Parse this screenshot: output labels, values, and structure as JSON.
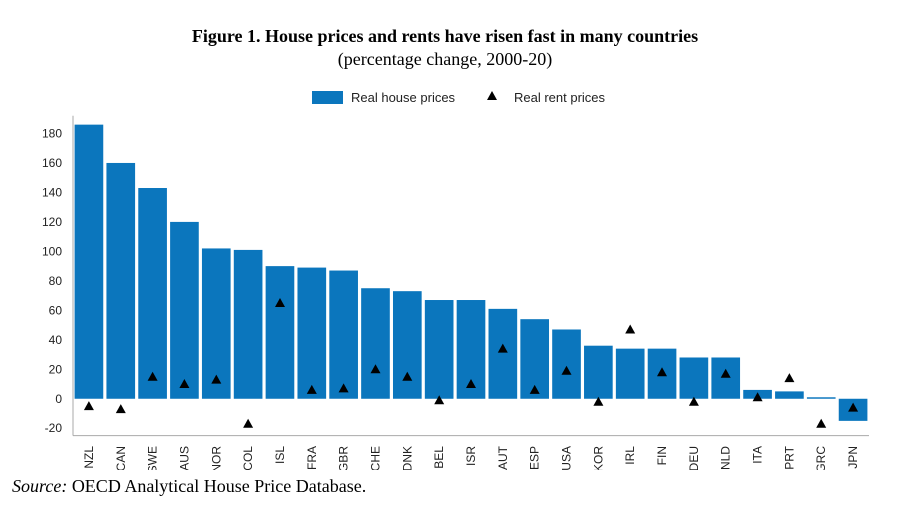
{
  "chart_data": {
    "type": "bar",
    "title": "Figure 1. House prices and rents have risen fast in many countries",
    "subtitle": "(percentage change, 2000-20)",
    "categories": [
      "NZL",
      "CAN",
      "SWE",
      "AUS",
      "NOR",
      "COL",
      "ISL",
      "FRA",
      "GBR",
      "CHE",
      "DNK",
      "BEL",
      "ISR",
      "AUT",
      "ESP",
      "USA",
      "KOR",
      "IRL",
      "FIN",
      "DEU",
      "NLD",
      "ITA",
      "PRT",
      "GRC",
      "JPN"
    ],
    "series": [
      {
        "name": "Real house prices",
        "mark": "bar",
        "color": "#0b76bd",
        "values": [
          186,
          160,
          143,
          120,
          102,
          101,
          90,
          89,
          87,
          75,
          73,
          67,
          67,
          61,
          54,
          47,
          36,
          34,
          34,
          28,
          28,
          6,
          5,
          1,
          -15
        ]
      },
      {
        "name": "Real rent prices",
        "mark": "triangle",
        "color": "#000000",
        "values": [
          -5,
          -7,
          15,
          10,
          13,
          -17,
          65,
          6,
          7,
          20,
          15,
          -1,
          10,
          34,
          6,
          19,
          -2,
          47,
          18,
          -2,
          17,
          1,
          14,
          -17,
          -6
        ]
      }
    ],
    "yticks": [
      -20,
      0,
      20,
      40,
      60,
      80,
      100,
      120,
      140,
      160,
      180
    ],
    "ylim": [
      -25,
      192
    ],
    "xlabel": "",
    "ylabel": "",
    "grid": false,
    "legend": "top-center"
  },
  "source": {
    "label": "Source:",
    "text": " OECD Analytical House Price Database."
  }
}
